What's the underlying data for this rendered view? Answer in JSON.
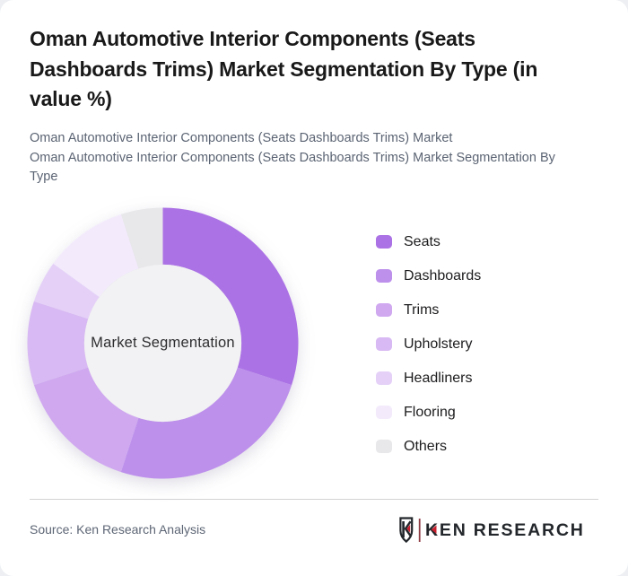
{
  "page": {
    "background_color": "#edeff2",
    "card_color": "#ffffff"
  },
  "header": {
    "title": "Oman Automotive Interior Components (Seats\nDashboards Trims) Market Segmentation By Type (in\nvalue %)",
    "subtitle_line1": "Oman Automotive Interior Components (Seats Dashboards Trims) Market",
    "subtitle_line2": "Oman Automotive Interior Components (Seats Dashboards Trims) Market Segmentation By\nType"
  },
  "chart_data": {
    "type": "pie",
    "variant": "donut",
    "title": "Oman Automotive Interior Components (Seats Dashboards Trims) Market Segmentation By Type (in value %)",
    "center_label": "Market Segmentation",
    "unit": "value %",
    "start_angle_deg": 0,
    "direction": "clockwise",
    "legend_position": "right",
    "inner_radius_ratio": 0.58,
    "inner_circle_color": "#f2f1f3",
    "segments": [
      {
        "label": "Seats",
        "value": 30,
        "color": "#ab72e5"
      },
      {
        "label": "Dashboards",
        "value": 25,
        "color": "#bd90ec"
      },
      {
        "label": "Trims",
        "value": 15,
        "color": "#cfa8f0"
      },
      {
        "label": "Upholstery",
        "value": 10,
        "color": "#d8b9f3"
      },
      {
        "label": "Headliners",
        "value": 5,
        "color": "#e5d1f8"
      },
      {
        "label": "Flooring",
        "value": 10,
        "color": "#f3ebfc"
      },
      {
        "label": "Others",
        "value": 5,
        "color": "#e8e7ea"
      }
    ]
  },
  "footer": {
    "source": "Source: Ken Research Analysis",
    "logo_text": "KEN RESEARCH",
    "logo_colors": {
      "dark": "#23272b",
      "red": "#c8202f",
      "separator": "#8f3a42"
    }
  }
}
